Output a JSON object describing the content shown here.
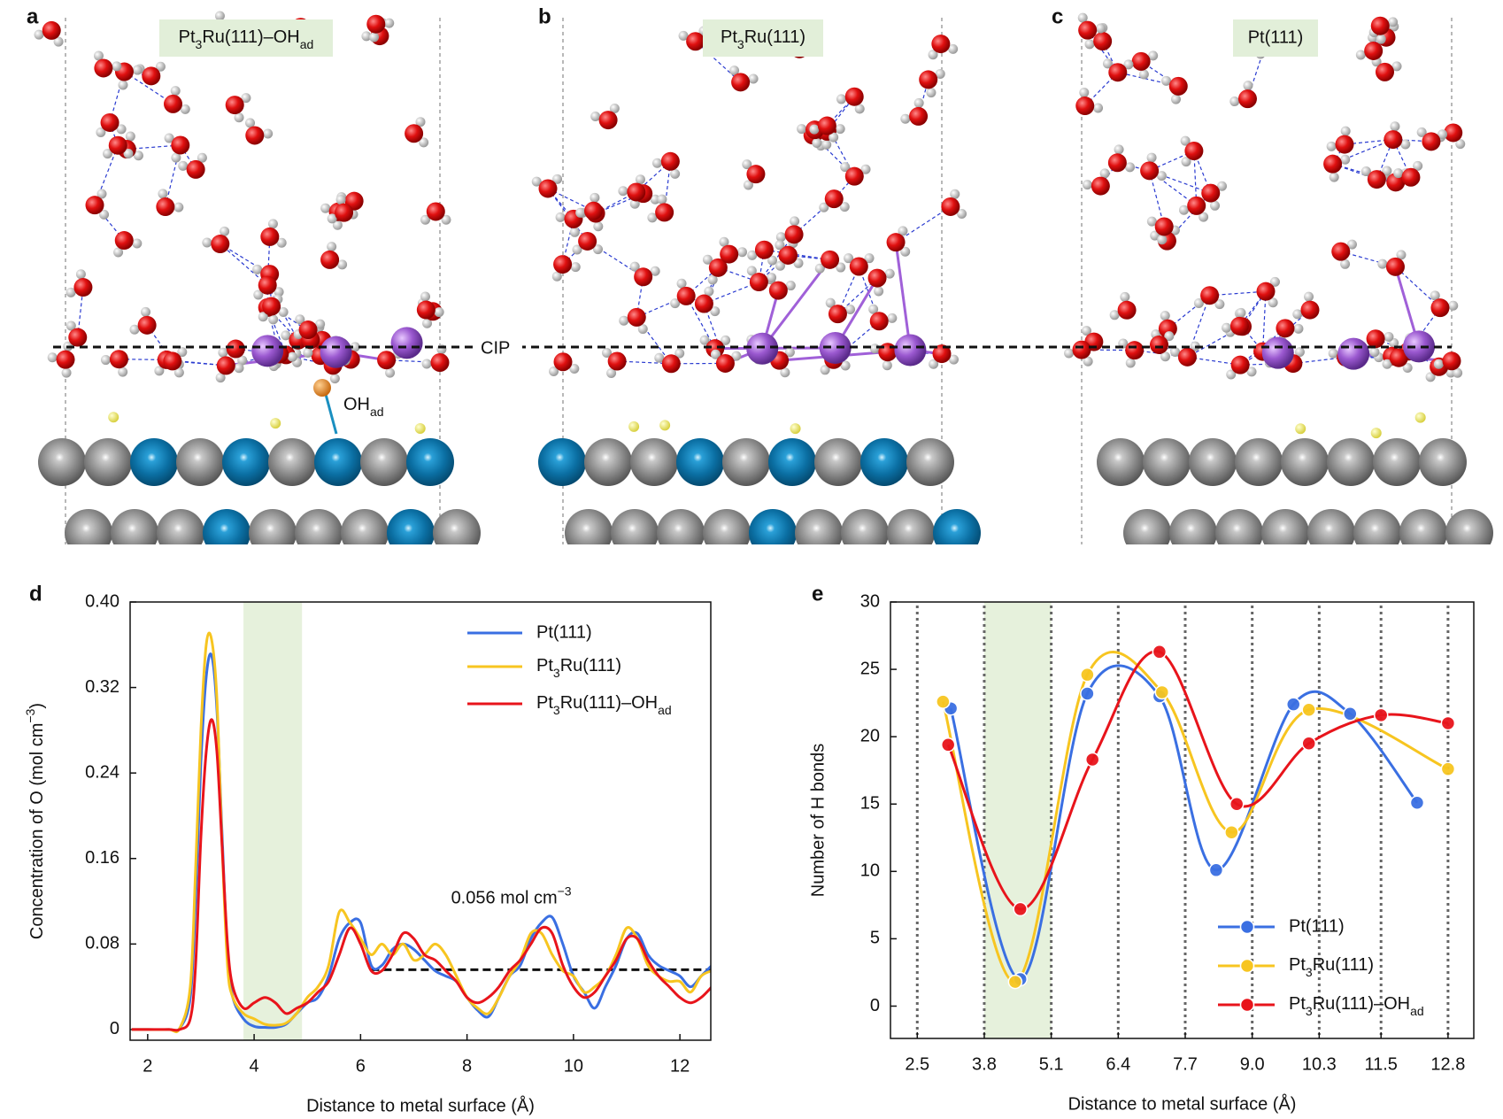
{
  "top": {
    "panels": [
      {
        "letter": "a",
        "label": "Pt3Ru(111)–OHad"
      },
      {
        "letter": "b",
        "label": "Pt3Ru(111)"
      },
      {
        "letter": "c",
        "label": "Pt(111)"
      }
    ],
    "cip": "CIP",
    "oh": "OHad"
  },
  "chart_data": [
    {
      "type": "line",
      "label": "d",
      "xlabel": "Distance to metal surface (Å)",
      "ylabel": "Concentration of O (mol cm−3)",
      "xlim": [
        1.67,
        12.58
      ],
      "ylim": [
        -0.01,
        0.4
      ],
      "xticks": [
        2,
        4,
        6,
        8,
        10,
        12
      ],
      "yticks": [
        0,
        0.08,
        0.16,
        0.24,
        0.32,
        {
          "value": 0.4,
          "label": "0.40"
        }
      ],
      "shade": [
        3.8,
        4.9
      ],
      "shade_color": "#e6f1dc",
      "hline": {
        "y": 0.056,
        "x": [
          6.2,
          12.6
        ],
        "label": "0.056 mol cm−3"
      },
      "legend": "upper right",
      "markers": false,
      "x": [
        1.7,
        2.0,
        2.4,
        2.6,
        2.8,
        2.9,
        3.0,
        3.1,
        3.2,
        3.3,
        3.4,
        3.5,
        3.6,
        3.8,
        4.0,
        4.2,
        4.4,
        4.6,
        4.8,
        5.0,
        5.2,
        5.4,
        5.6,
        5.8,
        6.0,
        6.2,
        6.4,
        6.6,
        6.8,
        7.0,
        7.2,
        7.4,
        7.6,
        7.8,
        8.0,
        8.2,
        8.4,
        8.6,
        8.8,
        9.0,
        9.2,
        9.4,
        9.6,
        9.8,
        10.0,
        10.2,
        10.4,
        10.6,
        10.8,
        11.0,
        11.2,
        11.4,
        11.6,
        11.8,
        12.0,
        12.2,
        12.4,
        12.6
      ],
      "series": [
        {
          "name": "Pt(111)",
          "color": "#3a6fe2",
          "values": [
            0,
            0,
            0,
            0.001,
            0.03,
            0.12,
            0.25,
            0.33,
            0.35,
            0.3,
            0.18,
            0.07,
            0.03,
            0.01,
            0.003,
            0.002,
            0.002,
            0.005,
            0.015,
            0.025,
            0.03,
            0.05,
            0.085,
            0.1,
            0.1,
            0.06,
            0.06,
            0.075,
            0.08,
            0.075,
            0.065,
            0.055,
            0.05,
            0.045,
            0.03,
            0.018,
            0.012,
            0.03,
            0.05,
            0.06,
            0.085,
            0.1,
            0.105,
            0.08,
            0.05,
            0.035,
            0.02,
            0.04,
            0.06,
            0.085,
            0.09,
            0.07,
            0.06,
            0.055,
            0.05,
            0.04,
            0.05,
            0.06
          ]
        },
        {
          "name": "Pt3Ru(111)",
          "color": "#f7c520",
          "values": [
            0,
            0,
            0,
            0.001,
            0.04,
            0.15,
            0.28,
            0.36,
            0.365,
            0.31,
            0.17,
            0.06,
            0.03,
            0.015,
            0.01,
            0.005,
            0.004,
            0.006,
            0.015,
            0.03,
            0.04,
            0.06,
            0.11,
            0.1,
            0.085,
            0.07,
            0.08,
            0.07,
            0.08,
            0.065,
            0.07,
            0.08,
            0.07,
            0.05,
            0.03,
            0.02,
            0.015,
            0.03,
            0.05,
            0.065,
            0.09,
            0.09,
            0.07,
            0.055,
            0.05,
            0.035,
            0.04,
            0.05,
            0.07,
            0.095,
            0.085,
            0.06,
            0.05,
            0.045,
            0.045,
            0.035,
            0.05,
            0.055
          ]
        },
        {
          "name": "Pt3Ru(111)–OHad",
          "color": "#e8141b",
          "values": [
            0,
            0,
            0,
            0,
            0.01,
            0.06,
            0.18,
            0.26,
            0.29,
            0.26,
            0.17,
            0.08,
            0.04,
            0.02,
            0.025,
            0.03,
            0.025,
            0.015,
            0.02,
            0.025,
            0.035,
            0.045,
            0.07,
            0.095,
            0.08,
            0.055,
            0.055,
            0.07,
            0.09,
            0.085,
            0.07,
            0.065,
            0.055,
            0.045,
            0.03,
            0.025,
            0.03,
            0.04,
            0.055,
            0.065,
            0.08,
            0.095,
            0.09,
            0.06,
            0.04,
            0.03,
            0.035,
            0.05,
            0.065,
            0.085,
            0.085,
            0.065,
            0.05,
            0.04,
            0.03,
            0.025,
            0.03,
            0.04
          ]
        }
      ]
    },
    {
      "type": "line",
      "label": "e",
      "xlabel": "Distance to metal surface (Å)",
      "ylabel": "Number of H bonds",
      "xlim": [
        1.98,
        13.3
      ],
      "ylim": [
        -2.4,
        30
      ],
      "xticks": [
        2.5,
        3.8,
        5.1,
        6.4,
        7.7,
        {
          "value": 9,
          "label": "9.0"
        },
        10.3,
        11.5,
        12.8
      ],
      "yticks": [
        0,
        5,
        10,
        15,
        20,
        25,
        30
      ],
      "xgrid": true,
      "shade": [
        3.8,
        5.1
      ],
      "shade_color": "#e6f1dc",
      "legend": "lower right",
      "markers": true,
      "series": [
        {
          "name": "Pt(111)",
          "color": "#3a6fe2",
          "x": [
            3.15,
            4.5,
            5.8,
            7.2,
            8.3,
            9.8,
            10.9,
            12.2
          ],
          "values": [
            22.1,
            2.0,
            23.2,
            23.0,
            10.1,
            22.4,
            21.7,
            15.1
          ]
        },
        {
          "name": "Pt3Ru(111)",
          "color": "#f7c520",
          "x": [
            3.0,
            4.4,
            5.8,
            7.25,
            8.6,
            10.1,
            12.8
          ],
          "values": [
            22.6,
            1.8,
            24.6,
            23.3,
            12.9,
            22.0,
            17.6
          ]
        },
        {
          "name": "Pt3Ru(111)–OHad",
          "color": "#e8141b",
          "x": [
            3.1,
            4.5,
            5.9,
            7.2,
            8.7,
            10.1,
            11.5,
            12.8
          ],
          "values": [
            19.4,
            7.2,
            18.3,
            26.3,
            15.0,
            19.5,
            21.6,
            21.0
          ]
        }
      ]
    }
  ]
}
